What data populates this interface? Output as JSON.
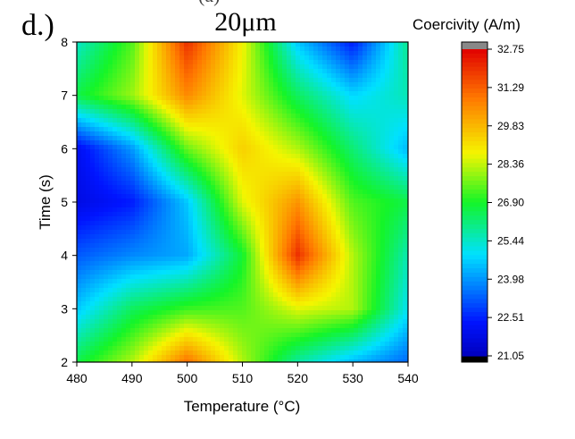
{
  "figure": {
    "panel_label": "d.)",
    "cropped_heading": "(a)"
  },
  "chart_data": {
    "type": "heatmap",
    "subtype": "filled-contour",
    "title": "20μm",
    "xlabel": "Temperature (°C)",
    "ylabel": "Time (s)",
    "xlim": [
      480,
      540
    ],
    "ylim": [
      2,
      8
    ],
    "x_ticks": [
      480,
      490,
      500,
      510,
      520,
      530,
      540
    ],
    "y_ticks": [
      2,
      3,
      4,
      5,
      6,
      7,
      8
    ],
    "x": [
      480,
      490,
      500,
      510,
      520,
      530,
      540
    ],
    "y": [
      2,
      3,
      4,
      5,
      6,
      7,
      8
    ],
    "z": [
      [
        26.6,
        28.2,
        31.0,
        28.2,
        25.8,
        24.4,
        23.4
      ],
      [
        24.6,
        26.4,
        27.2,
        27.4,
        28.6,
        28.2,
        25.0
      ],
      [
        23.2,
        23.8,
        24.2,
        26.8,
        32.0,
        28.2,
        25.6
      ],
      [
        21.8,
        22.4,
        24.6,
        28.6,
        30.4,
        27.4,
        26.6
      ],
      [
        22.0,
        24.0,
        27.6,
        29.4,
        28.2,
        26.2,
        24.4
      ],
      [
        26.6,
        28.0,
        30.6,
        28.6,
        26.4,
        24.8,
        25.6
      ],
      [
        25.4,
        27.4,
        32.0,
        28.8,
        24.6,
        22.4,
        26.0
      ]
    ],
    "colorbar": {
      "label": "Coercivity (A/m)",
      "min": 21.05,
      "max": 32.75,
      "tick_labels": [
        "21.05",
        "22.51",
        "23.98",
        "25.44",
        "26.90",
        "28.36",
        "29.83",
        "31.29",
        "32.75"
      ],
      "low_color": "#000000",
      "high_color": "#888888"
    }
  }
}
